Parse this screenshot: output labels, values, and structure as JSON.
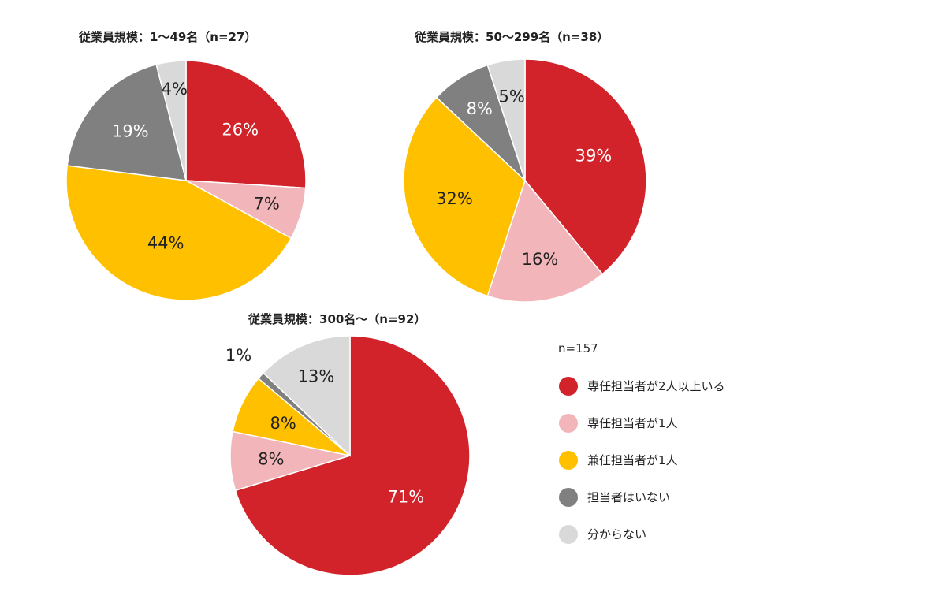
{
  "legend": {
    "n_label": "n=157",
    "items": [
      {
        "label": "専任担当者が2人以上いる",
        "color": "#D2232A"
      },
      {
        "label": "専任担当者が1人",
        "color": "#F2B6BA"
      },
      {
        "label": "兼任担当者が1人",
        "color": "#FFC000"
      },
      {
        "label": "担当者はいない",
        "color": "#808080"
      },
      {
        "label": "分からない",
        "color": "#D9D9D9"
      }
    ]
  },
  "chart_data": [
    {
      "type": "pie",
      "title": "従業員規模：1～49名（n=27）",
      "series": [
        {
          "name": "専任担当者が2人以上いる",
          "value": 26,
          "label": "26%",
          "color": "#D2232A",
          "label_color": "#ffffff"
        },
        {
          "name": "専任担当者が1人",
          "value": 7,
          "label": "7%",
          "color": "#F2B6BA",
          "label_color": "#222222"
        },
        {
          "name": "兼任担当者が1人",
          "value": 44,
          "label": "44%",
          "color": "#FFC000",
          "label_color": "#222222"
        },
        {
          "name": "担当者はいない",
          "value": 19,
          "label": "19%",
          "color": "#808080",
          "label_color": "#ffffff"
        },
        {
          "name": "分からない",
          "value": 4,
          "label": "4%",
          "color": "#D9D9D9",
          "label_color": "#222222"
        }
      ]
    },
    {
      "type": "pie",
      "title": "従業員規模：50～299名（n=38）",
      "series": [
        {
          "name": "専任担当者が2人以上いる",
          "value": 39,
          "label": "39%",
          "color": "#D2232A",
          "label_color": "#ffffff"
        },
        {
          "name": "専任担当者が1人",
          "value": 16,
          "label": "16%",
          "color": "#F2B6BA",
          "label_color": "#222222"
        },
        {
          "name": "兼任担当者が1人",
          "value": 32,
          "label": "32%",
          "color": "#FFC000",
          "label_color": "#222222"
        },
        {
          "name": "担当者はいない",
          "value": 8,
          "label": "8%",
          "color": "#808080",
          "label_color": "#ffffff"
        },
        {
          "name": "分からない",
          "value": 5,
          "label": "5%",
          "color": "#D9D9D9",
          "label_color": "#222222"
        }
      ]
    },
    {
      "type": "pie",
      "title": "従業員規模：300名～（n=92）",
      "series": [
        {
          "name": "専任担当者が2人以上いる",
          "value": 71,
          "label": "71%",
          "color": "#D2232A",
          "label_color": "#ffffff"
        },
        {
          "name": "専任担当者が1人",
          "value": 8,
          "label": "8%",
          "color": "#F2B6BA",
          "label_color": "#222222"
        },
        {
          "name": "兼任担当者が1人",
          "value": 8,
          "label": "8%",
          "color": "#FFC000",
          "label_color": "#222222"
        },
        {
          "name": "担当者はいない",
          "value": 1,
          "label": "1%",
          "color": "#808080",
          "label_color": "#222222"
        },
        {
          "name": "分からない",
          "value": 13,
          "label": "13%",
          "color": "#D9D9D9",
          "label_color": "#222222"
        }
      ]
    }
  ]
}
